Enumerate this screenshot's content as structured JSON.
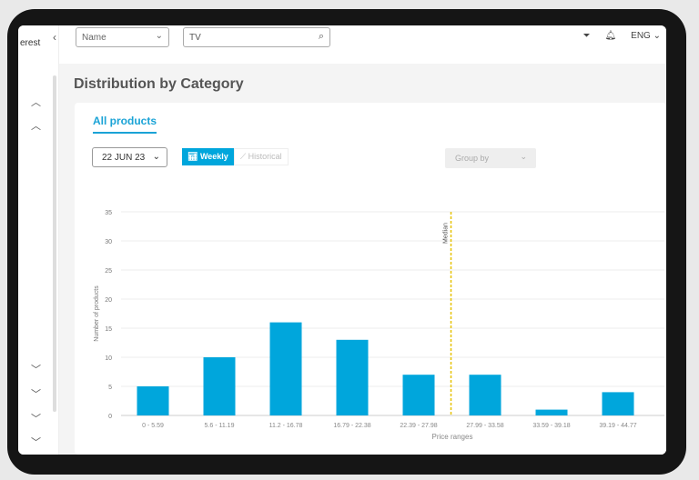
{
  "sidebar": {
    "title_fragment": "erest"
  },
  "topbar": {
    "name_select": "Name",
    "search_value": "TV",
    "language": "ENG"
  },
  "page": {
    "title": "Distribution by Category"
  },
  "card": {
    "tab": "All products",
    "date": "22 JUN 23",
    "weekly": "Weekly",
    "historical": "Historical",
    "group_by": "Group by"
  },
  "colors": {
    "bar": "#00a6dc",
    "accent": "#1aa3d6",
    "median": "#e6c200"
  },
  "chart_data": {
    "type": "bar",
    "categories": [
      "0 - 5.59",
      "5.6 - 11.19",
      "11.2 - 16.78",
      "16.79 - 22.38",
      "22.39 - 27.98",
      "27.99 - 33.58",
      "33.59 - 39.18",
      "39.19 - 44.77"
    ],
    "values": [
      5,
      10,
      16,
      13,
      7,
      7,
      1,
      4
    ],
    "xlabel": "Price ranges",
    "ylabel": "Number of products",
    "ylim": [
      0,
      35
    ],
    "yticks": [
      "0",
      "5",
      "10",
      "15",
      "20",
      "25",
      "30",
      "35"
    ],
    "median_label": "Median",
    "median_position": 27.9,
    "grid": true
  }
}
